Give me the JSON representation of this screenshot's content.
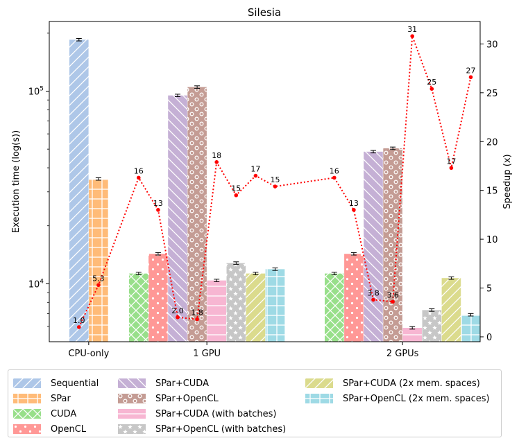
{
  "chart_data": {
    "type": "bar",
    "title": "Silesia",
    "xlabel": "",
    "ylabel": "Execution time (log(s))",
    "ylabel_right": "Speedup (x)",
    "yscale": "log",
    "ylim": [
      5000,
      230000
    ],
    "ylim_right": [
      -0.5,
      32.3
    ],
    "y_ticks": [
      {
        "value": 10000,
        "label": "10^4",
        "base": "10",
        "exp": "4"
      },
      {
        "value": 100000,
        "label": "10^5",
        "base": "10",
        "exp": "5"
      }
    ],
    "y_ticks_right": [
      0,
      5,
      10,
      15,
      20,
      25,
      30
    ],
    "groups": [
      {
        "name": "CPU-only",
        "series": [
          "Sequential",
          "SPar"
        ]
      },
      {
        "name": "1 GPU",
        "series": [
          "CUDA",
          "OpenCL",
          "SPar+CUDA",
          "SPar+OpenCL",
          "SPar+CUDA (with batches)",
          "SPar+OpenCL (with batches)",
          "SPar+CUDA (2x mem. spaces)",
          "SPar+OpenCL (2x mem. spaces)"
        ]
      },
      {
        "name": "2 GPUs",
        "series": [
          "CUDA",
          "OpenCL",
          "SPar+CUDA",
          "SPar+OpenCL",
          "SPar+CUDA (with batches)",
          "SPar+OpenCL (with batches)",
          "SPar+CUDA (2x mem. spaces)",
          "SPar+OpenCL (2x mem. spaces)"
        ]
      }
    ],
    "series": [
      {
        "name": "Sequential",
        "color": "#aec7e8",
        "hatch": "diagonal",
        "values": [
          185000,
          null,
          null
        ]
      },
      {
        "name": "SPar",
        "color": "#ffbb78",
        "hatch": "grid",
        "values": [
          35000,
          null,
          null
        ]
      },
      {
        "name": "CUDA",
        "color": "#98df8a",
        "hatch": "cross",
        "values": [
          null,
          11300,
          11300
        ]
      },
      {
        "name": "OpenCL",
        "color": "#ff9896",
        "hatch": "dots",
        "values": [
          null,
          14300,
          14300
        ]
      },
      {
        "name": "SPar+CUDA",
        "color": "#c5b0d5",
        "hatch": "backslash",
        "values": [
          null,
          95000,
          48500
        ]
      },
      {
        "name": "SPar+OpenCL",
        "color": "#c49c94",
        "hatch": "rings",
        "values": [
          null,
          105000,
          50500
        ]
      },
      {
        "name": "SPar+CUDA (with batches)",
        "color": "#f7b6d2",
        "hatch": "hlines",
        "values": [
          null,
          10400,
          5900
        ]
      },
      {
        "name": "SPar+OpenCL (with batches)",
        "color": "#c7c7c7",
        "hatch": "stars",
        "values": [
          null,
          12800,
          7300
        ]
      },
      {
        "name": "SPar+CUDA (2x mem. spaces)",
        "color": "#dbdb8d",
        "hatch": "diagonal",
        "values": [
          null,
          11300,
          10700
        ]
      },
      {
        "name": "SPar+OpenCL (2x mem. spaces)",
        "color": "#9edae5",
        "hatch": "grid",
        "values": [
          null,
          11900,
          6900
        ]
      }
    ],
    "speedup": {
      "color": "#ff0000",
      "style": "dotted",
      "values": [
        1.0,
        5.3,
        16.3,
        13.0,
        2.0,
        1.8,
        17.9,
        14.5,
        16.5,
        15.4,
        16.3,
        13.0,
        3.8,
        3.6,
        30.8,
        25.4,
        17.3,
        26.6
      ],
      "labels": [
        "1.0",
        "5.3",
        "16",
        "13",
        "2.0",
        "1.8",
        "18",
        "15",
        "17",
        "15",
        "16",
        "13",
        "3.8",
        "3.6",
        "31",
        "25",
        "17",
        "27"
      ]
    },
    "legend_position": "bottom"
  }
}
